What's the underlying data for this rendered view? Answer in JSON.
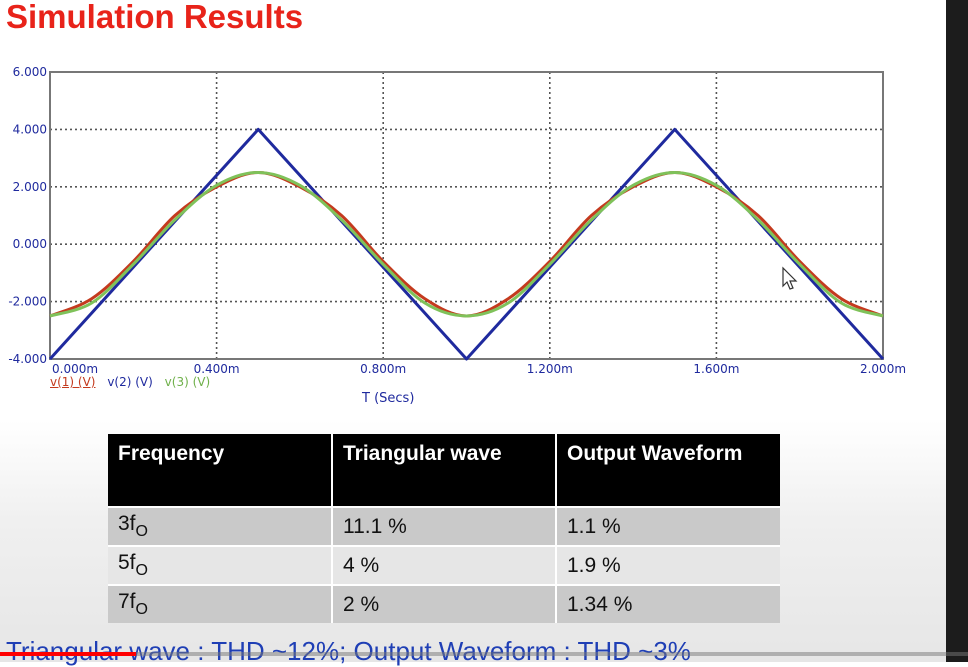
{
  "slide": {
    "title": "Simulation Results",
    "caption": "Triangular wave : THD ~12%; Output Waveform : THD ~3%"
  },
  "chart_data": {
    "type": "line",
    "xlabel": "T (Secs)",
    "x_ticks": [
      "0.000m",
      "0.400m",
      "0.800m",
      "1.200m",
      "1.600m",
      "2.000m"
    ],
    "y_ticks": [
      "6.000",
      "4.000",
      "2.000",
      "0.000",
      "-2.000",
      "-4.000"
    ],
    "xlim": [
      0,
      2.0
    ],
    "ylim": [
      -4,
      6
    ],
    "x_unit": "ms",
    "grid": true,
    "legend_placement": "bottom-left",
    "series": [
      {
        "name": "v(1) (V)",
        "color": "#c43a1e",
        "x": [
          0.0,
          0.1,
          0.2,
          0.3,
          0.4,
          0.5,
          0.6,
          0.7,
          0.8,
          0.9,
          1.0,
          1.1,
          1.2,
          1.3,
          1.4,
          1.5,
          1.6,
          1.7,
          1.8,
          1.9,
          2.0
        ],
        "y": [
          -2.5,
          -1.9,
          -0.6,
          1.0,
          2.0,
          2.5,
          2.0,
          1.0,
          -0.6,
          -1.9,
          -2.5,
          -1.9,
          -0.6,
          1.0,
          2.0,
          2.5,
          2.0,
          1.0,
          -0.6,
          -1.9,
          -2.5
        ]
      },
      {
        "name": "v(2) (V)",
        "color": "#1f2a9e",
        "x": [
          0.0,
          0.5,
          1.0,
          1.5,
          2.0
        ],
        "y": [
          -4.0,
          4.0,
          -4.0,
          4.0,
          -4.0
        ]
      },
      {
        "name": "v(3) (V)",
        "color": "#7fc25a",
        "x": [
          0.0,
          0.1,
          0.2,
          0.3,
          0.4,
          0.5,
          0.6,
          0.7,
          0.8,
          0.9,
          1.0,
          1.1,
          1.2,
          1.3,
          1.4,
          1.5,
          1.6,
          1.7,
          1.8,
          1.9,
          2.0
        ],
        "y": [
          -2.5,
          -2.05,
          -0.7,
          0.85,
          2.05,
          2.5,
          2.05,
          0.85,
          -0.7,
          -2.05,
          -2.5,
          -2.05,
          -0.7,
          0.85,
          2.05,
          2.5,
          2.05,
          0.85,
          -0.7,
          -2.05,
          -2.5
        ]
      }
    ]
  },
  "table": {
    "headers": [
      "Frequency",
      "Triangular wave",
      "Output Waveform"
    ],
    "rows": [
      {
        "freq_base": "3f",
        "freq_sub": "O",
        "triangular": "11.1 %",
        "output": "1.1 %"
      },
      {
        "freq_base": "5f",
        "freq_sub": "O",
        "triangular": "4 %",
        "output": "1.9 %"
      },
      {
        "freq_base": "7f",
        "freq_sub": "O",
        "triangular": "2 %",
        "output": "1.34 %"
      }
    ]
  },
  "video": {
    "progress_fraction": 0.14,
    "progress_color": "#ff0000"
  }
}
